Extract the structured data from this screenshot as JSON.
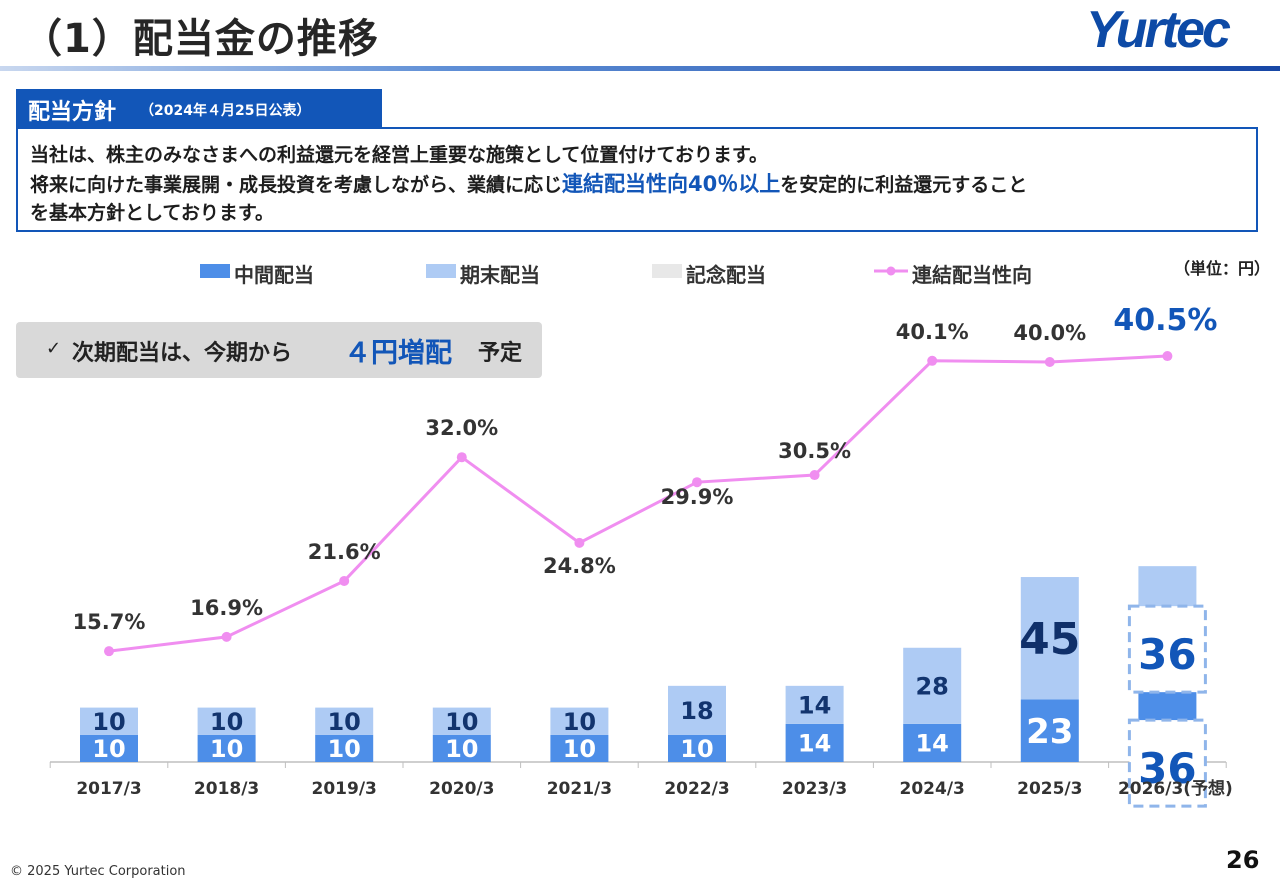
{
  "header": {
    "title": "（1）配当金の推移",
    "logo_text": "Yurtec"
  },
  "policy": {
    "heading": "配当方針",
    "heading_sub": "（2024年４月25日公表）",
    "line1": "当社は、株主のみなさまへの利益還元を経営上重要な施策として位置付けております。",
    "line2_pre": "将来に向けた事業展開・成長投資を考慮しながら、業績に応じ",
    "line2_highlight": "連結配当性向40％以上",
    "line2_post": "を安定的に利益還元すること",
    "line3": "を基本方針としております。"
  },
  "note": {
    "check": "✓",
    "text_pre": "次期配当は、今期から",
    "text_highlight": "４円増配",
    "text_post": "予定"
  },
  "unit_label": "（単位：円）",
  "colors": {
    "interim": "#4d8ee8",
    "year_end": "#aecbf4",
    "commemorative": "#e8e8e8",
    "payout_line": "#f08ef0",
    "accent": "#1256b8",
    "dark_value": "#12346e"
  },
  "chart_data": {
    "type": "bar",
    "stacked": true,
    "categories": [
      "2017/3",
      "2018/3",
      "2019/3",
      "2020/3",
      "2021/3",
      "2022/3",
      "2023/3",
      "2024/3",
      "2025/3",
      "2026/3(予想)"
    ],
    "series": [
      {
        "name": "中間配当",
        "values": [
          10,
          10,
          10,
          10,
          10,
          10,
          14,
          14,
          23,
          36
        ]
      },
      {
        "name": "期末配当",
        "values": [
          10,
          10,
          10,
          10,
          10,
          18,
          14,
          28,
          45,
          36
        ]
      },
      {
        "name": "記念配当",
        "values": [
          0,
          0,
          0,
          0,
          0,
          0,
          0,
          0,
          0,
          0
        ]
      }
    ],
    "line_series": {
      "name": "連結配当性向",
      "values": [
        15.7,
        16.9,
        21.6,
        32.0,
        24.8,
        29.9,
        30.5,
        40.1,
        40.0,
        40.5
      ],
      "labels": [
        "15.7%",
        "16.9%",
        "21.6%",
        "32.0%",
        "24.8%",
        "29.9%",
        "30.5%",
        "40.1%",
        "40.0%",
        "40.5%"
      ]
    },
    "legend": [
      "中間配当",
      "期末配当",
      "記念配当",
      "連結配当性向"
    ],
    "legend_position": "top",
    "ylim_bars": [
      0,
      72
    ],
    "forecast_index": 9
  },
  "footer": {
    "copyright": "© 2025 Yurtec Corporation",
    "page_number": "26"
  }
}
